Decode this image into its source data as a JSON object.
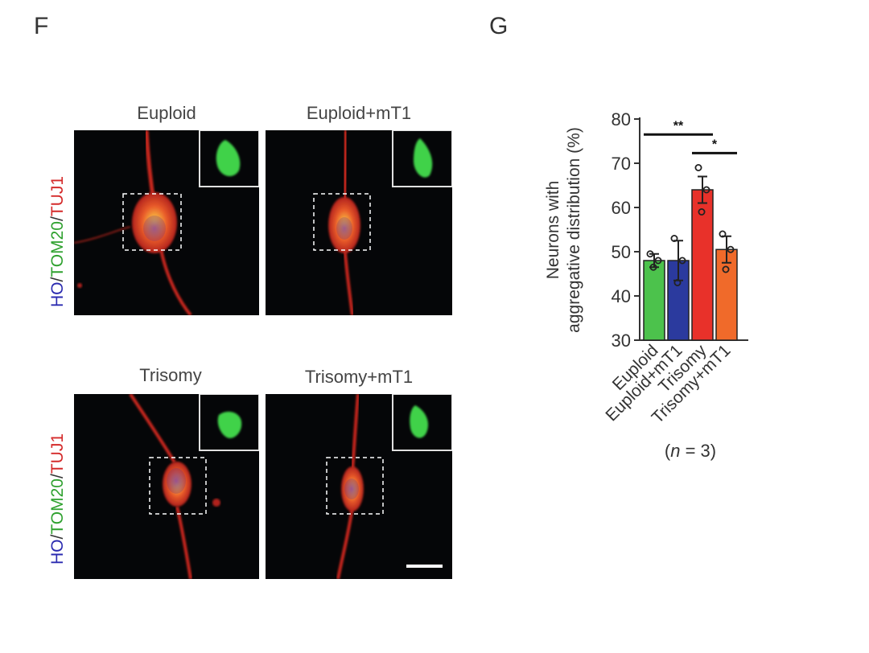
{
  "panels": {
    "left_letter": "F",
    "right_letter": "G"
  },
  "microscopy": {
    "titles": [
      "Euploid",
      "Euploid+mT1",
      "Trisomy",
      "Trisomy+mT1"
    ],
    "stain_label": {
      "part1": "HO",
      "sep1": "/",
      "part2": "TOM20",
      "sep2": "/",
      "part3": "TUJ1",
      "colors": {
        "HO": "#2b2bb0",
        "TOM20": "#2fa12f",
        "TUJ1": "#d42a2a"
      }
    }
  },
  "chart_data": {
    "type": "bar",
    "categories": [
      "Euploid",
      "Euploid+mT1",
      "Trisomy",
      "Trisomy+mT1"
    ],
    "values": [
      48,
      48,
      64,
      50.5
    ],
    "errors": [
      1.5,
      4.5,
      3,
      3
    ],
    "points": [
      [
        49.5,
        48,
        46.5
      ],
      [
        53,
        48,
        43
      ],
      [
        69,
        64,
        59
      ],
      [
        54,
        50.5,
        46
      ]
    ],
    "colors": [
      "#4cc24c",
      "#2b3a9e",
      "#e8312a",
      "#f06a2a"
    ],
    "ylabel_line1": "Neurons with",
    "ylabel_line2": "aggregative distribution (%)",
    "yticks": [
      "30",
      "40",
      "50",
      "60",
      "70",
      "80"
    ],
    "ylim": [
      30,
      80
    ],
    "footnote_open": "(",
    "footnote_n": "n",
    "footnote_rest": " = 3)",
    "significance": [
      {
        "label": "**",
        "from": 0,
        "to": 2,
        "y": 76.5
      },
      {
        "label": "*",
        "from": 2,
        "to": 3,
        "y": 72.3
      }
    ]
  }
}
